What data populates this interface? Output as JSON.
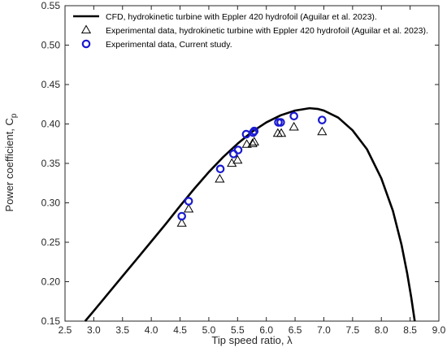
{
  "chart_data": {
    "type": "scatter",
    "xlabel": "Tip speed ratio, λ",
    "ylabel": "Power coefficient, C",
    "ylabel_subscript": "p",
    "xlim": [
      2.5,
      9.0
    ],
    "ylim": [
      0.15,
      0.55
    ],
    "xticks": [
      "2.5",
      "3.0",
      "3.5",
      "4.0",
      "4.5",
      "5.0",
      "5.5",
      "6.0",
      "6.5",
      "7.0",
      "7.5",
      "8.0",
      "8.5",
      "9.0"
    ],
    "yticks": [
      "0.15",
      "0.20",
      "0.25",
      "0.30",
      "0.35",
      "0.40",
      "0.45",
      "0.50",
      "0.55"
    ],
    "grid": false,
    "legend_position": "top-left",
    "series": [
      {
        "name": "CFD, hydrokinetic turbine with Eppler 420 hydrofoil (Aguilar et al. 2023).",
        "style": "line",
        "color": "#000000",
        "x": [
          2.85,
          3.0,
          3.25,
          3.5,
          3.75,
          4.0,
          4.25,
          4.5,
          4.75,
          5.0,
          5.25,
          5.5,
          5.75,
          6.0,
          6.25,
          6.5,
          6.75,
          6.9,
          7.0,
          7.25,
          7.5,
          7.75,
          8.0,
          8.2,
          8.35,
          8.45,
          8.52,
          8.58
        ],
        "y": [
          0.15,
          0.163,
          0.185,
          0.207,
          0.229,
          0.251,
          0.273,
          0.296,
          0.318,
          0.339,
          0.358,
          0.375,
          0.39,
          0.402,
          0.411,
          0.417,
          0.42,
          0.419,
          0.417,
          0.408,
          0.392,
          0.368,
          0.331,
          0.29,
          0.247,
          0.21,
          0.18,
          0.15
        ]
      },
      {
        "name": "Experimental data, hydrokinetic turbine with Eppler 420 hydrofoil (Aguilar et al. 2023).",
        "style": "triangle",
        "color": "#000000",
        "x": [
          4.53,
          4.65,
          5.19,
          5.4,
          5.5,
          5.66,
          5.76,
          5.79,
          6.2,
          6.26,
          6.48,
          6.97
        ],
        "y": [
          0.274,
          0.292,
          0.33,
          0.35,
          0.354,
          0.374,
          0.375,
          0.377,
          0.388,
          0.388,
          0.396,
          0.39
        ]
      },
      {
        "name": "Experimental data, Current study.",
        "style": "circle",
        "color": "#1a1ad0",
        "x": [
          4.53,
          4.65,
          5.2,
          5.43,
          5.51,
          5.65,
          5.77,
          5.79,
          6.21,
          6.25,
          6.48,
          6.97
        ],
        "y": [
          0.283,
          0.302,
          0.343,
          0.362,
          0.367,
          0.387,
          0.389,
          0.391,
          0.402,
          0.402,
          0.41,
          0.405
        ]
      }
    ]
  }
}
